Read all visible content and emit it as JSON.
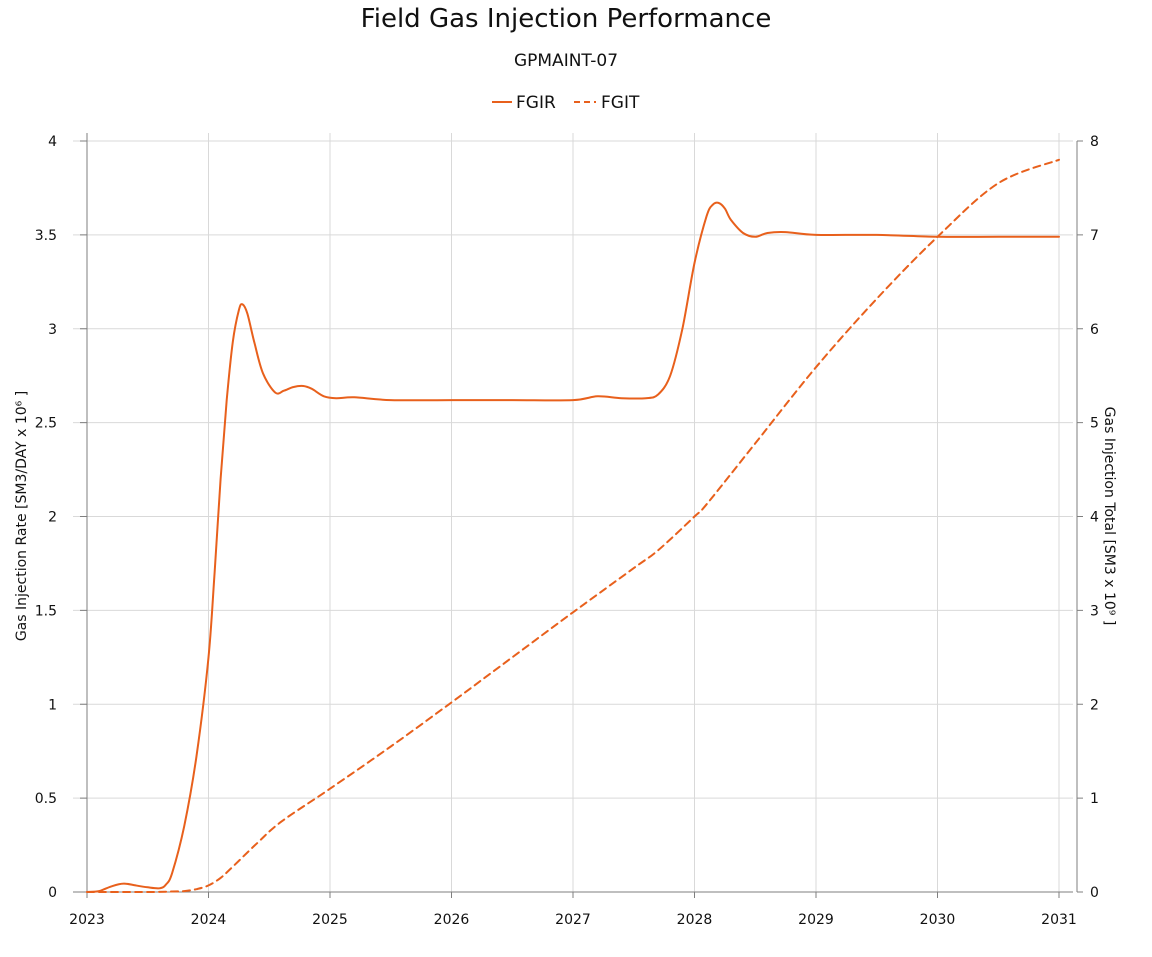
{
  "chart_data": {
    "type": "line",
    "title": "Field Gas Injection Performance",
    "subtitle": "GPMAINT-07",
    "legend_position": "top-center",
    "grid": true,
    "x_ticks": [
      "2023",
      "2024",
      "2025",
      "2026",
      "2027",
      "2028",
      "2029",
      "2030",
      "2031"
    ],
    "xlim": [
      2023,
      2031
    ],
    "ylabel_left": "Gas Injection Rate [SM3/DAY x 10⁶ ]",
    "ylim_left": [
      0,
      4
    ],
    "yticks_left": [
      "0",
      "0.5",
      "1",
      "1.5",
      "2",
      "2.5",
      "3",
      "3.5",
      "4"
    ],
    "ylabel_right": "Gas Injection Total [SM3 x 10⁹ ]",
    "ylim_right": [
      0,
      8
    ],
    "yticks_right": [
      "0",
      "1",
      "2",
      "3",
      "4",
      "5",
      "6",
      "7",
      "8"
    ],
    "color": "#e8601c",
    "series": [
      {
        "name": "FGIR",
        "axis": "left",
        "style": "solid",
        "x": [
          2023.0,
          2023.1,
          2023.2,
          2023.3,
          2023.4,
          2023.5,
          2023.6,
          2023.65,
          2023.7,
          2023.8,
          2023.9,
          2024.0,
          2024.05,
          2024.1,
          2024.15,
          2024.2,
          2024.25,
          2024.28,
          2024.32,
          2024.38,
          2024.45,
          2024.55,
          2024.62,
          2024.7,
          2024.78,
          2024.85,
          2024.95,
          2025.05,
          2025.2,
          2025.5,
          2026.0,
          2026.5,
          2027.0,
          2027.2,
          2027.4,
          2027.6,
          2027.7,
          2027.8,
          2027.9,
          2028.0,
          2028.1,
          2028.15,
          2028.2,
          2028.25,
          2028.3,
          2028.4,
          2028.5,
          2028.6,
          2028.75,
          2029.0,
          2029.5,
          2030.0,
          2030.5,
          2031.0
        ],
        "values": [
          0.0,
          0.005,
          0.03,
          0.045,
          0.035,
          0.025,
          0.02,
          0.04,
          0.1,
          0.35,
          0.72,
          1.25,
          1.7,
          2.2,
          2.62,
          2.93,
          3.1,
          3.13,
          3.08,
          2.92,
          2.76,
          2.66,
          2.67,
          2.69,
          2.695,
          2.68,
          2.64,
          2.63,
          2.635,
          2.62,
          2.62,
          2.62,
          2.62,
          2.64,
          2.63,
          2.63,
          2.65,
          2.75,
          3.0,
          3.35,
          3.6,
          3.66,
          3.67,
          3.64,
          3.58,
          3.51,
          3.49,
          3.51,
          3.515,
          3.5,
          3.5,
          3.49,
          3.49,
          3.49
        ]
      },
      {
        "name": "FGIT",
        "axis": "right",
        "style": "dashed",
        "x": [
          2023.0,
          2023.5,
          2023.7,
          2023.8,
          2023.9,
          2024.0,
          2024.1,
          2024.2,
          2024.4,
          2024.6,
          2025.0,
          2025.5,
          2026.0,
          2026.5,
          2027.0,
          2027.5,
          2027.7,
          2028.0,
          2028.1,
          2028.5,
          2029.0,
          2029.5,
          2030.0,
          2030.5,
          2031.0
        ],
        "values": [
          0.0,
          0.0,
          0.005,
          0.01,
          0.03,
          0.07,
          0.15,
          0.27,
          0.52,
          0.75,
          1.1,
          1.55,
          2.02,
          2.5,
          2.98,
          3.45,
          3.64,
          4.0,
          4.13,
          4.78,
          5.59,
          6.32,
          6.98,
          7.55,
          7.8
        ]
      }
    ]
  }
}
